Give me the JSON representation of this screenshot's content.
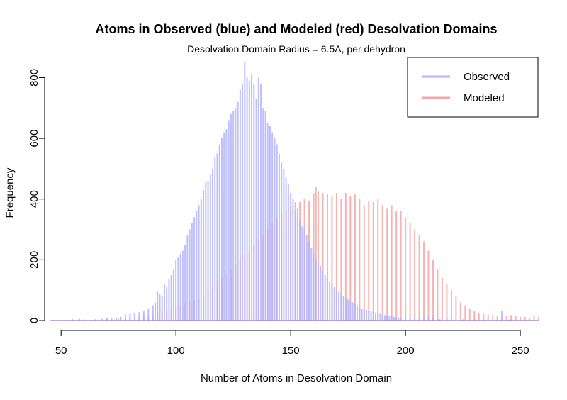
{
  "chart_data": {
    "type": "bar",
    "title": "Atoms in Observed (blue) and Modeled (red) Desolvation Domains",
    "subtitle": "Desolvation Domain Radius = 6.5A, per dehydron",
    "xlabel": "Number of Atoms in Desolvation Domain",
    "ylabel": "Frequency",
    "xlim": [
      45,
      258
    ],
    "ylim": [
      0,
      850
    ],
    "x_ticks": [
      50,
      100,
      150,
      200,
      250
    ],
    "y_ticks": [
      0,
      200,
      400,
      600,
      800
    ],
    "grid": false,
    "legend_position": "top-right",
    "series": [
      {
        "name": "Observed",
        "color": "#b3b3ff",
        "points": [
          [
            55,
            4
          ],
          [
            58,
            6
          ],
          [
            60,
            3
          ],
          [
            63,
            3
          ],
          [
            65,
            4
          ],
          [
            68,
            6
          ],
          [
            70,
            8
          ],
          [
            72,
            8
          ],
          [
            74,
            10
          ],
          [
            76,
            12
          ],
          [
            78,
            20
          ],
          [
            80,
            22
          ],
          [
            82,
            25
          ],
          [
            84,
            28
          ],
          [
            86,
            32
          ],
          [
            88,
            40
          ],
          [
            90,
            50
          ],
          [
            91,
            60
          ],
          [
            92,
            95
          ],
          [
            93,
            88
          ],
          [
            94,
            80
          ],
          [
            95,
            120
          ],
          [
            96,
            110
          ],
          [
            97,
            135
          ],
          [
            98,
            150
          ],
          [
            99,
            170
          ],
          [
            100,
            200
          ],
          [
            101,
            210
          ],
          [
            102,
            220
          ],
          [
            103,
            230
          ],
          [
            104,
            250
          ],
          [
            105,
            280
          ],
          [
            106,
            300
          ],
          [
            107,
            320
          ],
          [
            108,
            340
          ],
          [
            109,
            360
          ],
          [
            110,
            380
          ],
          [
            111,
            400
          ],
          [
            112,
            430
          ],
          [
            113,
            455
          ],
          [
            114,
            460
          ],
          [
            115,
            480
          ],
          [
            116,
            500
          ],
          [
            117,
            540
          ],
          [
            118,
            550
          ],
          [
            119,
            580
          ],
          [
            120,
            600
          ],
          [
            121,
            620
          ],
          [
            122,
            630
          ],
          [
            123,
            660
          ],
          [
            124,
            680
          ],
          [
            125,
            690
          ],
          [
            126,
            700
          ],
          [
            127,
            720
          ],
          [
            128,
            760
          ],
          [
            129,
            780
          ],
          [
            130,
            850
          ],
          [
            131,
            800
          ],
          [
            132,
            790
          ],
          [
            133,
            810
          ],
          [
            134,
            780
          ],
          [
            135,
            730
          ],
          [
            136,
            800
          ],
          [
            137,
            780
          ],
          [
            138,
            700
          ],
          [
            139,
            690
          ],
          [
            140,
            650
          ],
          [
            141,
            640
          ],
          [
            142,
            620
          ],
          [
            143,
            600
          ],
          [
            144,
            580
          ],
          [
            145,
            550
          ],
          [
            146,
            520
          ],
          [
            147,
            500
          ],
          [
            148,
            470
          ],
          [
            149,
            450
          ],
          [
            150,
            420
          ],
          [
            151,
            400
          ],
          [
            152,
            360
          ],
          [
            153,
            370
          ],
          [
            154,
            330
          ],
          [
            155,
            310
          ],
          [
            156,
            300
          ],
          [
            157,
            280
          ],
          [
            158,
            260
          ],
          [
            159,
            240
          ],
          [
            160,
            220
          ],
          [
            161,
            200
          ],
          [
            162,
            190
          ],
          [
            163,
            180
          ],
          [
            164,
            160
          ],
          [
            165,
            150
          ],
          [
            166,
            140
          ],
          [
            167,
            130
          ],
          [
            168,
            120
          ],
          [
            169,
            110
          ],
          [
            170,
            100
          ],
          [
            171,
            95
          ],
          [
            172,
            90
          ],
          [
            173,
            80
          ],
          [
            174,
            75
          ],
          [
            175,
            70
          ],
          [
            176,
            65
          ],
          [
            177,
            60
          ],
          [
            178,
            55
          ],
          [
            179,
            50
          ],
          [
            180,
            45
          ],
          [
            181,
            40
          ],
          [
            182,
            38
          ],
          [
            183,
            35
          ],
          [
            184,
            32
          ],
          [
            185,
            30
          ],
          [
            186,
            28
          ],
          [
            187,
            26
          ],
          [
            188,
            25
          ],
          [
            189,
            22
          ],
          [
            190,
            20
          ],
          [
            191,
            18
          ],
          [
            192,
            16
          ],
          [
            193,
            15
          ],
          [
            194,
            14
          ],
          [
            195,
            12
          ],
          [
            196,
            11
          ],
          [
            197,
            10
          ],
          [
            198,
            10
          ],
          [
            200,
            8
          ],
          [
            202,
            8
          ],
          [
            204,
            7
          ],
          [
            206,
            6
          ],
          [
            208,
            6
          ],
          [
            210,
            15
          ],
          [
            212,
            8
          ],
          [
            215,
            5
          ],
          [
            218,
            12
          ],
          [
            220,
            5
          ],
          [
            225,
            4
          ],
          [
            230,
            4
          ],
          [
            235,
            3
          ],
          [
            240,
            3
          ],
          [
            242,
            32
          ],
          [
            245,
            3
          ],
          [
            250,
            2
          ]
        ]
      },
      {
        "name": "Modeled",
        "color": "#f4a6a6",
        "points": [
          [
            55,
            2
          ],
          [
            60,
            3
          ],
          [
            65,
            4
          ],
          [
            70,
            4
          ],
          [
            75,
            6
          ],
          [
            78,
            8
          ],
          [
            80,
            10
          ],
          [
            82,
            10
          ],
          [
            84,
            12
          ],
          [
            86,
            14
          ],
          [
            88,
            16
          ],
          [
            90,
            20
          ],
          [
            92,
            24
          ],
          [
            94,
            28
          ],
          [
            96,
            32
          ],
          [
            98,
            38
          ],
          [
            100,
            44
          ],
          [
            102,
            50
          ],
          [
            104,
            56
          ],
          [
            106,
            62
          ],
          [
            108,
            68
          ],
          [
            110,
            72
          ],
          [
            112,
            80
          ],
          [
            114,
            95
          ],
          [
            116,
            110
          ],
          [
            118,
            125
          ],
          [
            120,
            140
          ],
          [
            122,
            150
          ],
          [
            124,
            170
          ],
          [
            126,
            185
          ],
          [
            128,
            200
          ],
          [
            130,
            215
          ],
          [
            132,
            230
          ],
          [
            134,
            250
          ],
          [
            136,
            265
          ],
          [
            138,
            280
          ],
          [
            140,
            300
          ],
          [
            142,
            320
          ],
          [
            144,
            340
          ],
          [
            146,
            355
          ],
          [
            148,
            365
          ],
          [
            150,
            375
          ],
          [
            152,
            390
          ],
          [
            154,
            390
          ],
          [
            156,
            400
          ],
          [
            158,
            395
          ],
          [
            160,
            420
          ],
          [
            161,
            440
          ],
          [
            162,
            425
          ],
          [
            164,
            420
          ],
          [
            166,
            415
          ],
          [
            168,
            410
          ],
          [
            170,
            420
          ],
          [
            172,
            400
          ],
          [
            174,
            420
          ],
          [
            176,
            410
          ],
          [
            178,
            415
          ],
          [
            180,
            400
          ],
          [
            182,
            380
          ],
          [
            184,
            395
          ],
          [
            186,
            390
          ],
          [
            188,
            400
          ],
          [
            190,
            380
          ],
          [
            192,
            370
          ],
          [
            194,
            380
          ],
          [
            196,
            360
          ],
          [
            198,
            360
          ],
          [
            200,
            340
          ],
          [
            202,
            320
          ],
          [
            204,
            300
          ],
          [
            206,
            280
          ],
          [
            208,
            260
          ],
          [
            210,
            230
          ],
          [
            212,
            200
          ],
          [
            214,
            170
          ],
          [
            216,
            140
          ],
          [
            218,
            120
          ],
          [
            220,
            100
          ],
          [
            222,
            80
          ],
          [
            224,
            60
          ],
          [
            226,
            50
          ],
          [
            228,
            40
          ],
          [
            230,
            30
          ],
          [
            232,
            25
          ],
          [
            234,
            22
          ],
          [
            236,
            20
          ],
          [
            238,
            18
          ],
          [
            240,
            15
          ],
          [
            242,
            12
          ],
          [
            244,
            15
          ],
          [
            246,
            18
          ],
          [
            248,
            15
          ],
          [
            250,
            12
          ],
          [
            252,
            12
          ],
          [
            254,
            10
          ],
          [
            256,
            15
          ],
          [
            258,
            12
          ]
        ]
      }
    ]
  }
}
